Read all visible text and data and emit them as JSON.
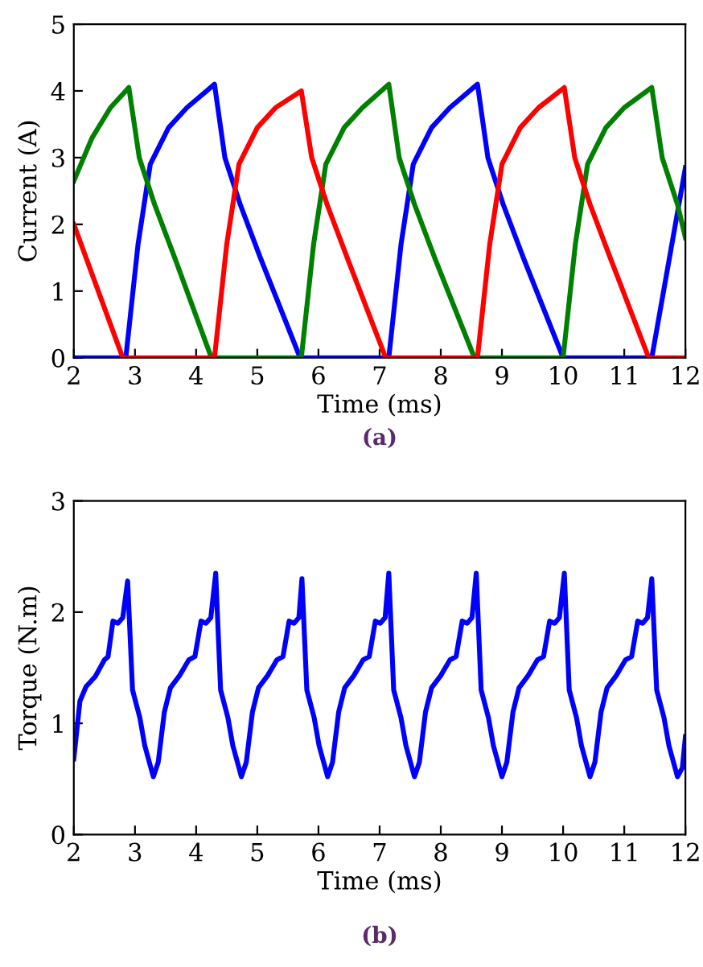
{
  "chart_data": [
    {
      "type": "line",
      "xlabel": "Time (ms)",
      "ylabel": "Current (A)",
      "annotations": [
        "(a)"
      ],
      "xlim": [
        2,
        12
      ],
      "ylim": [
        0,
        5
      ],
      "xticks": [
        2,
        3,
        4,
        5,
        6,
        7,
        8,
        9,
        10,
        11,
        12
      ],
      "yticks": [
        0,
        1,
        2,
        3,
        4,
        5
      ],
      "grid": false,
      "legend": false,
      "series": [
        {
          "color": "#0000ff",
          "x": [
            2,
            2.85,
            3.05,
            3.25,
            3.55,
            3.85,
            4.3,
            4.47,
            4.72,
            5.05,
            5.7,
            7.15,
            7.35,
            7.55,
            7.85,
            8.15,
            8.6,
            8.77,
            9.02,
            9.35,
            10.0,
            11.45,
            12
          ],
          "values": [
            0,
            0,
            1.7,
            2.9,
            3.45,
            3.75,
            4.1,
            3.0,
            2.3,
            1.5,
            0,
            0,
            1.7,
            2.9,
            3.45,
            3.75,
            4.1,
            3.0,
            2.3,
            1.5,
            0,
            0,
            2.85
          ]
        },
        {
          "color": "#008000",
          "x": [
            2,
            2.3,
            2.6,
            2.9,
            3.07,
            3.32,
            3.65,
            4.25,
            5.72,
            5.92,
            6.12,
            6.42,
            6.72,
            7.15,
            7.32,
            7.57,
            7.9,
            8.55,
            10.0,
            10.2,
            10.4,
            10.7,
            11.0,
            11.45,
            11.62,
            11.87,
            12
          ],
          "values": [
            2.65,
            3.3,
            3.75,
            4.05,
            3.0,
            2.3,
            1.5,
            0,
            0,
            1.7,
            2.9,
            3.45,
            3.75,
            4.1,
            3.0,
            2.3,
            1.5,
            0,
            0,
            1.7,
            2.9,
            3.45,
            3.75,
            4.05,
            3.0,
            2.3,
            1.8
          ]
        },
        {
          "color": "#ff0000",
          "x": [
            2,
            2.8,
            4.3,
            4.5,
            4.7,
            5.0,
            5.3,
            5.72,
            5.89,
            6.14,
            6.47,
            7.1,
            8.6,
            8.8,
            9.0,
            9.3,
            9.6,
            10.02,
            10.19,
            10.44,
            10.77,
            11.4,
            12
          ],
          "values": [
            2.0,
            0,
            0,
            1.7,
            2.9,
            3.45,
            3.75,
            4.0,
            3.0,
            2.3,
            1.5,
            0,
            0,
            1.7,
            2.9,
            3.45,
            3.75,
            4.05,
            3.0,
            2.3,
            1.5,
            0,
            0
          ]
        }
      ]
    },
    {
      "type": "line",
      "xlabel": "Time (ms)",
      "ylabel": "Torque (N.m)",
      "annotations": [
        "(b)"
      ],
      "xlim": [
        2,
        12
      ],
      "ylim": [
        0,
        3
      ],
      "xticks": [
        2,
        3,
        4,
        5,
        6,
        7,
        8,
        9,
        10,
        11,
        12
      ],
      "yticks": [
        0,
        1,
        2,
        3
      ],
      "grid": false,
      "legend": false,
      "series": [
        {
          "color": "#0000ff",
          "x": [
            2,
            2.1,
            2.2,
            2.35,
            2.5,
            2.56,
            2.64,
            2.72,
            2.8,
            2.88,
            2.96,
            3.08,
            3.16,
            3.3,
            3.38,
            3.48,
            3.58,
            3.73,
            3.88,
            3.98,
            4.08,
            4.16,
            4.24,
            4.32,
            4.4,
            4.52,
            4.6,
            4.74,
            4.82,
            4.92,
            5.02,
            5.17,
            5.32,
            5.42,
            5.52,
            5.6,
            5.68,
            5.73,
            5.81,
            5.93,
            6.01,
            6.15,
            6.23,
            6.33,
            6.43,
            6.58,
            6.73,
            6.83,
            6.93,
            7.01,
            7.09,
            7.15,
            7.23,
            7.35,
            7.43,
            7.57,
            7.65,
            7.75,
            7.85,
            8.0,
            8.15,
            8.25,
            8.35,
            8.43,
            8.51,
            8.58,
            8.66,
            8.78,
            8.86,
            9.0,
            9.08,
            9.18,
            9.28,
            9.43,
            9.58,
            9.68,
            9.78,
            9.86,
            9.94,
            10.02,
            10.1,
            10.22,
            10.3,
            10.44,
            10.52,
            10.62,
            10.72,
            10.87,
            11.02,
            11.12,
            11.22,
            11.3,
            11.38,
            11.45,
            11.53,
            11.65,
            11.73,
            11.87,
            11.95,
            12
          ],
          "values": [
            0.68,
            1.2,
            1.33,
            1.42,
            1.57,
            1.6,
            1.92,
            1.9,
            1.95,
            2.28,
            1.3,
            1.05,
            0.8,
            0.52,
            0.65,
            1.1,
            1.32,
            1.43,
            1.57,
            1.6,
            1.92,
            1.9,
            1.95,
            2.35,
            1.3,
            1.05,
            0.8,
            0.52,
            0.65,
            1.1,
            1.32,
            1.43,
            1.57,
            1.6,
            1.92,
            1.9,
            1.95,
            2.3,
            1.3,
            1.05,
            0.8,
            0.52,
            0.65,
            1.1,
            1.32,
            1.43,
            1.57,
            1.6,
            1.92,
            1.9,
            1.95,
            2.35,
            1.3,
            1.05,
            0.8,
            0.52,
            0.65,
            1.1,
            1.32,
            1.43,
            1.57,
            1.6,
            1.92,
            1.9,
            1.95,
            2.35,
            1.3,
            1.05,
            0.8,
            0.52,
            0.65,
            1.1,
            1.32,
            1.43,
            1.57,
            1.6,
            1.92,
            1.9,
            1.95,
            2.35,
            1.3,
            1.05,
            0.8,
            0.52,
            0.65,
            1.1,
            1.32,
            1.43,
            1.57,
            1.6,
            1.92,
            1.9,
            1.95,
            2.3,
            1.3,
            1.05,
            0.8,
            0.52,
            0.6,
            0.88
          ]
        }
      ]
    }
  ]
}
